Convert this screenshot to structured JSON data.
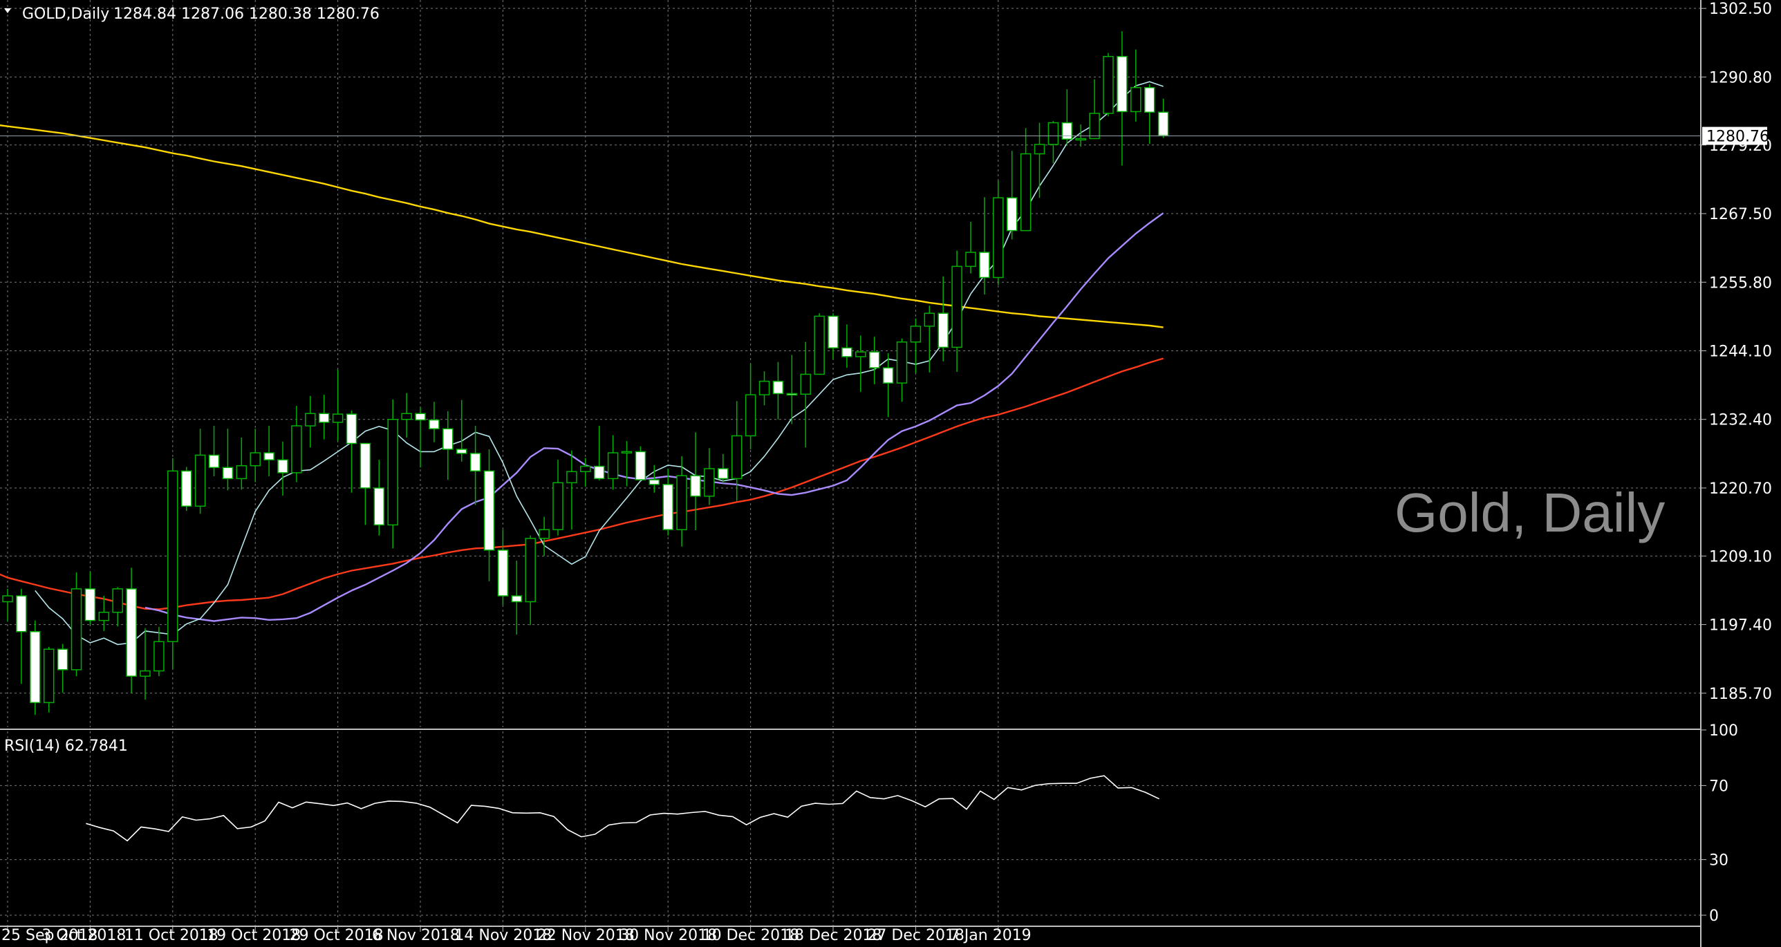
{
  "header": {
    "symbol": "GOLD,Daily",
    "ohlc": "1284.84 1287.06 1280.38 1280.76",
    "watermark": "Gold, Daily"
  },
  "price_panel": {
    "ticks": [
      "1302.50",
      "1290.80",
      "1279.20",
      "1267.50",
      "1255.80",
      "1244.10",
      "1232.40",
      "1220.70",
      "1209.10",
      "1197.40",
      "1185.70"
    ],
    "current_price_label": "1280.76",
    "current_price": 1280.76
  },
  "rsi_panel": {
    "label": "RSI(14) 62.7841",
    "ticks": [
      "100",
      "70",
      "30",
      "0"
    ]
  },
  "x_axis": {
    "labels": [
      "25 Sep 2018",
      "3 Oct 2018",
      "11 Oct 2018",
      "19 Oct 2018",
      "29 Oct 2018",
      "6 Nov 2018",
      "14 Nov 2018",
      "22 Nov 2018",
      "30 Nov 2018",
      "10 Dec 2018",
      "18 Dec 2018",
      "27 Dec 2018",
      "7 Jan 2019"
    ],
    "label_bar_index": [
      0,
      6,
      12,
      18,
      24,
      30,
      36,
      42,
      48,
      54,
      60,
      66,
      72
    ]
  },
  "colors": {
    "background": "#000000",
    "grid": "#7a7a7a",
    "bull_candle": "#00b000",
    "bear_body": "#ffffff",
    "ma_yellow": "#ffd700",
    "ma_red": "#ff3a1a",
    "ma_violet": "#a98bff",
    "ma_cyan": "#b4e6ec",
    "rsi_line": "#ffffff"
  },
  "chart_data": {
    "type": "candlestick",
    "title": "GOLD,Daily",
    "ylim": [
      1179.9,
      1303.7
    ],
    "rsi_ylim": [
      0,
      100
    ],
    "candles": [
      {
        "o": 1201.3,
        "h": 1203.5,
        "l": 1197.9,
        "c": 1202.3
      },
      {
        "o": 1202.3,
        "h": 1203.5,
        "l": 1187.3,
        "c": 1196.2
      },
      {
        "o": 1196.2,
        "h": 1198.1,
        "l": 1182.0,
        "c": 1184.1
      },
      {
        "o": 1184.1,
        "h": 1193.6,
        "l": 1182.4,
        "c": 1193.2
      },
      {
        "o": 1193.2,
        "h": 1194.1,
        "l": 1185.8,
        "c": 1189.7
      },
      {
        "o": 1189.7,
        "h": 1206.3,
        "l": 1188.6,
        "c": 1203.5
      },
      {
        "o": 1203.5,
        "h": 1206.4,
        "l": 1197.4,
        "c": 1198.1
      },
      {
        "o": 1198.1,
        "h": 1202.3,
        "l": 1196.3,
        "c": 1199.5
      },
      {
        "o": 1199.5,
        "h": 1203.8,
        "l": 1197.1,
        "c": 1203.5
      },
      {
        "o": 1203.5,
        "h": 1207.1,
        "l": 1185.7,
        "c": 1188.6
      },
      {
        "o": 1188.6,
        "h": 1196.8,
        "l": 1184.6,
        "c": 1189.5
      },
      {
        "o": 1189.5,
        "h": 1197.0,
        "l": 1188.6,
        "c": 1194.5
      },
      {
        "o": 1194.5,
        "h": 1225.8,
        "l": 1189.8,
        "c": 1223.6
      },
      {
        "o": 1223.6,
        "h": 1224.3,
        "l": 1216.8,
        "c": 1217.6
      },
      {
        "o": 1217.6,
        "h": 1230.8,
        "l": 1216.3,
        "c": 1226.3
      },
      {
        "o": 1226.3,
        "h": 1231.3,
        "l": 1222.7,
        "c": 1224.2
      },
      {
        "o": 1224.2,
        "h": 1230.8,
        "l": 1220.3,
        "c": 1222.3
      },
      {
        "o": 1222.3,
        "h": 1229.3,
        "l": 1220.4,
        "c": 1224.5
      },
      {
        "o": 1224.5,
        "h": 1230.8,
        "l": 1221.7,
        "c": 1226.7
      },
      {
        "o": 1226.7,
        "h": 1231.3,
        "l": 1222.7,
        "c": 1225.5
      },
      {
        "o": 1225.5,
        "h": 1228.6,
        "l": 1219.4,
        "c": 1223.3
      },
      {
        "o": 1223.3,
        "h": 1234.7,
        "l": 1221.7,
        "c": 1231.3
      },
      {
        "o": 1231.3,
        "h": 1236.4,
        "l": 1227.6,
        "c": 1233.4
      },
      {
        "o": 1233.4,
        "h": 1236.6,
        "l": 1229.0,
        "c": 1231.9
      },
      {
        "o": 1231.9,
        "h": 1240.9,
        "l": 1228.7,
        "c": 1233.3
      },
      {
        "o": 1233.3,
        "h": 1233.9,
        "l": 1219.9,
        "c": 1228.3
      },
      {
        "o": 1228.3,
        "h": 1227.8,
        "l": 1214.4,
        "c": 1220.7
      },
      {
        "o": 1220.7,
        "h": 1225.5,
        "l": 1212.6,
        "c": 1214.4
      },
      {
        "o": 1214.4,
        "h": 1235.8,
        "l": 1210.4,
        "c": 1232.4
      },
      {
        "o": 1232.4,
        "h": 1236.9,
        "l": 1229.3,
        "c": 1233.4
      },
      {
        "o": 1233.4,
        "h": 1234.5,
        "l": 1224.2,
        "c": 1232.3
      },
      {
        "o": 1232.3,
        "h": 1235.4,
        "l": 1228.5,
        "c": 1230.8
      },
      {
        "o": 1230.8,
        "h": 1233.8,
        "l": 1222.1,
        "c": 1227.3
      },
      {
        "o": 1227.3,
        "h": 1235.7,
        "l": 1225.2,
        "c": 1226.6
      },
      {
        "o": 1226.6,
        "h": 1231.3,
        "l": 1217.8,
        "c": 1223.6
      },
      {
        "o": 1223.6,
        "h": 1227.3,
        "l": 1204.8,
        "c": 1210.1
      },
      {
        "o": 1210.1,
        "h": 1213.6,
        "l": 1200.7,
        "c": 1202.3
      },
      {
        "o": 1202.3,
        "h": 1208.3,
        "l": 1195.7,
        "c": 1201.3
      },
      {
        "o": 1201.3,
        "h": 1212.6,
        "l": 1197.3,
        "c": 1212.1
      },
      {
        "o": 1212.1,
        "h": 1215.8,
        "l": 1209.1,
        "c": 1213.6
      },
      {
        "o": 1213.6,
        "h": 1225.5,
        "l": 1212.6,
        "c": 1221.6
      },
      {
        "o": 1221.6,
        "h": 1227.1,
        "l": 1213.6,
        "c": 1223.5
      },
      {
        "o": 1223.5,
        "h": 1225.8,
        "l": 1220.9,
        "c": 1224.4
      },
      {
        "o": 1224.4,
        "h": 1231.3,
        "l": 1222.0,
        "c": 1222.3
      },
      {
        "o": 1222.3,
        "h": 1229.7,
        "l": 1220.4,
        "c": 1226.7
      },
      {
        "o": 1226.7,
        "h": 1228.7,
        "l": 1221.0,
        "c": 1226.9
      },
      {
        "o": 1226.9,
        "h": 1227.8,
        "l": 1222.1,
        "c": 1222.1
      },
      {
        "o": 1222.1,
        "h": 1224.6,
        "l": 1219.9,
        "c": 1221.3
      },
      {
        "o": 1221.3,
        "h": 1224.0,
        "l": 1212.6,
        "c": 1213.6
      },
      {
        "o": 1213.6,
        "h": 1226.1,
        "l": 1210.7,
        "c": 1222.8
      },
      {
        "o": 1222.8,
        "h": 1230.2,
        "l": 1213.5,
        "c": 1219.3
      },
      {
        "o": 1219.3,
        "h": 1227.5,
        "l": 1217.8,
        "c": 1224.0
      },
      {
        "o": 1224.0,
        "h": 1226.5,
        "l": 1221.5,
        "c": 1222.3
      },
      {
        "o": 1222.3,
        "h": 1235.5,
        "l": 1218.5,
        "c": 1229.6
      },
      {
        "o": 1229.6,
        "h": 1241.9,
        "l": 1227.3,
        "c": 1236.6
      },
      {
        "o": 1236.6,
        "h": 1240.6,
        "l": 1234.8,
        "c": 1238.9
      },
      {
        "o": 1238.9,
        "h": 1242.2,
        "l": 1232.4,
        "c": 1236.8
      },
      {
        "o": 1236.8,
        "h": 1243.4,
        "l": 1231.6,
        "c": 1236.7
      },
      {
        "o": 1236.7,
        "h": 1245.6,
        "l": 1227.6,
        "c": 1240.1
      },
      {
        "o": 1240.1,
        "h": 1250.5,
        "l": 1240.5,
        "c": 1250.0
      },
      {
        "o": 1250.0,
        "h": 1250.5,
        "l": 1242.6,
        "c": 1244.6
      },
      {
        "o": 1244.6,
        "h": 1248.6,
        "l": 1241.2,
        "c": 1243.1
      },
      {
        "o": 1243.1,
        "h": 1246.7,
        "l": 1237.1,
        "c": 1243.9
      },
      {
        "o": 1243.9,
        "h": 1246.5,
        "l": 1238.4,
        "c": 1241.2
      },
      {
        "o": 1241.2,
        "h": 1243.7,
        "l": 1232.8,
        "c": 1238.6
      },
      {
        "o": 1238.6,
        "h": 1246.2,
        "l": 1235.4,
        "c": 1245.6
      },
      {
        "o": 1245.6,
        "h": 1249.6,
        "l": 1240.3,
        "c": 1248.3
      },
      {
        "o": 1248.3,
        "h": 1251.8,
        "l": 1240.4,
        "c": 1250.5
      },
      {
        "o": 1250.5,
        "h": 1256.8,
        "l": 1242.3,
        "c": 1244.7
      },
      {
        "o": 1244.7,
        "h": 1261.2,
        "l": 1240.5,
        "c": 1258.5
      },
      {
        "o": 1258.5,
        "h": 1266.1,
        "l": 1257.3,
        "c": 1260.9
      },
      {
        "o": 1260.9,
        "h": 1270.3,
        "l": 1253.7,
        "c": 1256.6
      },
      {
        "o": 1256.6,
        "h": 1273.1,
        "l": 1255.3,
        "c": 1270.2
      },
      {
        "o": 1270.2,
        "h": 1278.2,
        "l": 1263.1,
        "c": 1264.6
      },
      {
        "o": 1264.6,
        "h": 1282.1,
        "l": 1264.5,
        "c": 1277.7
      },
      {
        "o": 1277.7,
        "h": 1283.0,
        "l": 1270.2,
        "c": 1279.3
      },
      {
        "o": 1279.3,
        "h": 1283.3,
        "l": 1276.1,
        "c": 1283.0
      },
      {
        "o": 1283.0,
        "h": 1288.7,
        "l": 1279.1,
        "c": 1280.2
      },
      {
        "o": 1280.2,
        "h": 1282.7,
        "l": 1278.9,
        "c": 1280.3
      },
      {
        "o": 1280.3,
        "h": 1290.4,
        "l": 1280.3,
        "c": 1284.6
      },
      {
        "o": 1284.6,
        "h": 1294.9,
        "l": 1284.1,
        "c": 1294.3
      },
      {
        "o": 1294.3,
        "h": 1298.6,
        "l": 1275.7,
        "c": 1284.9
      },
      {
        "o": 1284.9,
        "h": 1295.5,
        "l": 1283.2,
        "c": 1289.0
      },
      {
        "o": 1289.0,
        "h": 1289.6,
        "l": 1279.4,
        "c": 1284.8
      },
      {
        "o": 1284.8,
        "h": 1287.1,
        "l": 1280.4,
        "c": 1280.8
      }
    ],
    "series": [
      {
        "name": "",
        "color": "#ffd700",
        "values": [
          1282.7,
          1282.4,
          1282.1,
          1281.8,
          1281.5,
          1281.2,
          1280.8,
          1280.4,
          1280.0,
          1279.6,
          1279.2,
          1278.8,
          1278.3,
          1277.8,
          1277.4,
          1276.9,
          1276.4,
          1276.0,
          1275.6,
          1275.1,
          1274.6,
          1274.1,
          1273.6,
          1273.1,
          1272.6,
          1272.0,
          1271.4,
          1270.9,
          1270.3,
          1269.8,
          1269.3,
          1268.7,
          1268.2,
          1267.6,
          1267.1,
          1266.5,
          1265.8,
          1265.3,
          1264.8,
          1264.4,
          1263.9,
          1263.4,
          1262.9,
          1262.4,
          1261.9,
          1261.4,
          1260.9,
          1260.4,
          1259.9,
          1259.4,
          1258.9,
          1258.5,
          1258.1,
          1257.7,
          1257.3,
          1256.9,
          1256.5,
          1256.1,
          1255.8,
          1255.5,
          1255.1,
          1254.8,
          1254.4,
          1254.1,
          1253.8,
          1253.4,
          1253.0,
          1252.7,
          1252.3,
          1252.0,
          1251.7,
          1251.4,
          1251.1,
          1250.8,
          1250.5,
          1250.3,
          1250.0,
          1249.8,
          1249.6,
          1249.4,
          1249.2,
          1249.0,
          1248.8,
          1248.6,
          1248.4,
          1248.1
        ]
      },
      {
        "name": "",
        "color": "#ff3a1a",
        "values": [
          1206.4,
          1205.4,
          1204.8,
          1204.2,
          1203.6,
          1203.1,
          1202.6,
          1202.2,
          1201.8,
          1201.2,
          1200.6,
          1200.1,
          1200.0,
          1200.3,
          1200.7,
          1201.0,
          1201.3,
          1201.5,
          1201.6,
          1201.8,
          1202.0,
          1202.6,
          1203.5,
          1204.4,
          1205.3,
          1206.0,
          1206.6,
          1207.0,
          1207.4,
          1207.8,
          1208.3,
          1208.8,
          1209.2,
          1209.7,
          1210.1,
          1210.4,
          1210.5,
          1210.7,
          1210.9,
          1211.1,
          1211.6,
          1212.1,
          1212.6,
          1213.1,
          1213.6,
          1214.2,
          1214.8,
          1215.3,
          1215.8,
          1216.3,
          1216.6,
          1217.0,
          1217.4,
          1217.8,
          1218.3,
          1218.7,
          1219.3,
          1220.0,
          1220.8,
          1221.7,
          1222.6,
          1223.5,
          1224.4,
          1225.3,
          1226.0,
          1226.8,
          1227.6,
          1228.5,
          1229.4,
          1230.3,
          1231.2,
          1232.0,
          1232.7,
          1233.2,
          1233.9,
          1234.6,
          1235.4,
          1236.2,
          1237.0,
          1237.9,
          1238.8,
          1239.7,
          1240.6,
          1241.3,
          1242.1,
          1242.8
        ]
      },
      {
        "name": "",
        "color": "#a98bff",
        "values": [
          1200.3,
          1199.8,
          1199.1,
          1198.6,
          1198.3,
          1198.0,
          1198.3,
          1198.6,
          1198.5,
          1198.2,
          1198.3,
          1198.5,
          1199.4,
          1200.7,
          1202.0,
          1203.2,
          1204.2,
          1205.4,
          1206.6,
          1207.9,
          1209.6,
          1211.8,
          1214.6,
          1217.1,
          1218.3,
          1219.1,
          1221.2,
          1223.3,
          1226.0,
          1227.5,
          1227.4,
          1226.2,
          1224.6,
          1223.8,
          1223.1,
          1222.5,
          1222.2,
          1222.4,
          1222.7,
          1222.4,
          1222.1,
          1221.8,
          1221.5,
          1221.3,
          1220.8,
          1220.3,
          1219.7,
          1219.5,
          1219.9,
          1220.5,
          1221.1,
          1222.0,
          1224.2,
          1226.6,
          1228.9,
          1230.4,
          1231.2,
          1232.2,
          1233.5,
          1234.8,
          1235.2,
          1236.5,
          1238.1,
          1240.2,
          1243.1,
          1246.0,
          1248.9,
          1251.7,
          1254.6,
          1257.3,
          1259.9,
          1262.0,
          1264.1,
          1265.9,
          1267.6
        ]
      },
      {
        "name": "",
        "color": "#b4e6ec",
        "values": [
          1203.2,
          1200.3,
          1198.4,
          1195.6,
          1194.3,
          1195.1,
          1194.0,
          1194.3,
          1196.3,
          1196.0,
          1195.7,
          1197.5,
          1198.4,
          1201.1,
          1204.2,
          1210.5,
          1216.7,
          1220.3,
          1222.5,
          1223.6,
          1223.8,
          1225.3,
          1226.9,
          1228.5,
          1230.4,
          1231.2,
          1230.5,
          1228.4,
          1226.9,
          1226.9,
          1227.9,
          1228.7,
          1230.2,
          1229.5,
          1225.0,
          1219.3,
          1215.2,
          1210.9,
          1209.3,
          1207.7,
          1209.0,
          1213.4,
          1216.2,
          1219.0,
          1221.9,
          1223.5,
          1224.6,
          1224.3,
          1222.8,
          1222.6,
          1221.9,
          1222.3,
          1223.5,
          1226.1,
          1229.2,
          1232.6,
          1234.2,
          1236.7,
          1239.2,
          1240.0,
          1240.3,
          1240.9,
          1242.7,
          1242.3,
          1241.8,
          1242.4,
          1245.5,
          1249.3,
          1253.8,
          1257.0,
          1259.7,
          1265.0,
          1268.1,
          1272.2,
          1275.7,
          1279.5,
          1281.3,
          1282.7,
          1284.7,
          1287.2,
          1289.3,
          1290.0,
          1289.2
        ]
      }
    ],
    "rsi": [
      49.5,
      47.3,
      45.5,
      40.2,
      47.6,
      46.6,
      45.2,
      53.1,
      51.3,
      52.0,
      53.8,
      46.7,
      47.6,
      50.9,
      61.0,
      58.0,
      61.1,
      60.2,
      59.2,
      60.6,
      57.5,
      60.4,
      61.6,
      61.4,
      60.5,
      58.3,
      54.1,
      49.8,
      59.3,
      58.8,
      57.7,
      55.3,
      55.1,
      55.3,
      53.3,
      46.2,
      42.3,
      43.7,
      48.7,
      49.8,
      50.0,
      54.1,
      55.0,
      54.6,
      55.4,
      56.0,
      54.0,
      53.2,
      48.8,
      52.8,
      54.8,
      52.9,
      58.8,
      60.4,
      59.9,
      60.3,
      67.0,
      63.5,
      62.8,
      64.6,
      61.9,
      58.5,
      62.8,
      63.0,
      57.2,
      67.0,
      62.5,
      68.9,
      67.6,
      70.1,
      71.0,
      71.2,
      71.2,
      73.9,
      75.3,
      68.7,
      68.9,
      66.3,
      62.8
    ]
  }
}
